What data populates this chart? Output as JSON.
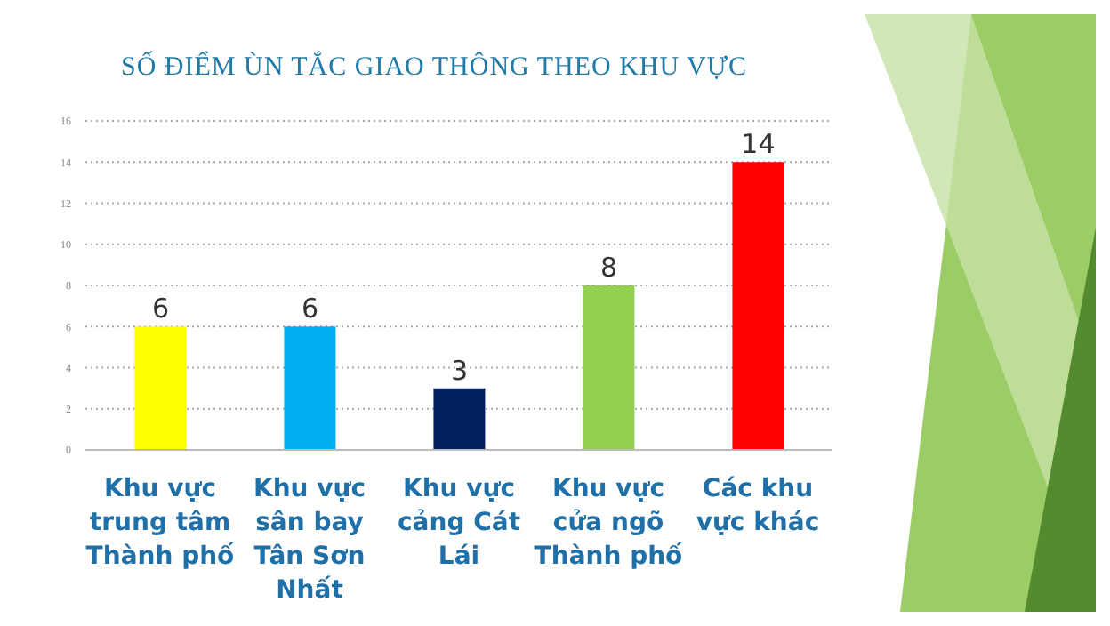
{
  "chart_data": {
    "type": "bar",
    "title": "SỐ ĐIỂM ÙN TẮC GIAO THÔNG THEO KHU VỰC",
    "categories": [
      "Khu vực trung tâm Thành phố",
      "Khu vực sân bay Tân Sơn Nhất",
      "Khu vực cảng Cát Lái",
      "Khu vực cửa ngõ Thành phố",
      "Các khu vực khác"
    ],
    "values": [
      6,
      6,
      3,
      8,
      14
    ],
    "colors": [
      "#ffff00",
      "#00b0f0",
      "#002060",
      "#92d050",
      "#ff0000"
    ],
    "ylim": [
      0,
      16
    ],
    "yticks": [
      0,
      2,
      4,
      6,
      8,
      10,
      12,
      14,
      16
    ],
    "grid": "y",
    "data_labels": true
  }
}
